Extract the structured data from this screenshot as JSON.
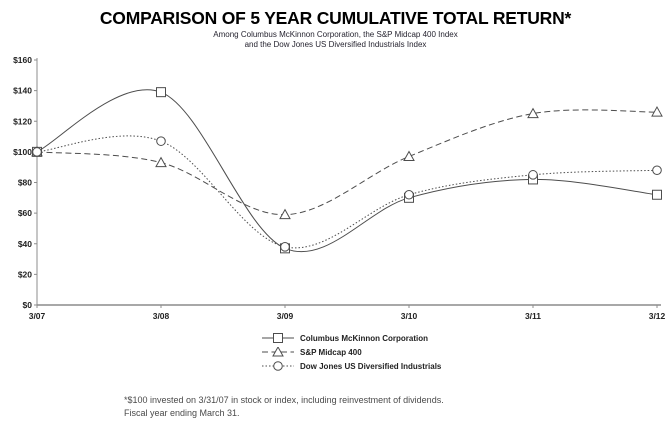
{
  "title": "COMPARISON OF 5 YEAR CUMULATIVE TOTAL RETURN*",
  "subtitle_line1": "Among Columbus McKinnon Corporation, the S&P Midcap 400 Index",
  "subtitle_line2": "and the Dow Jones US Diversified Industrials Index",
  "footnote_line1": "*$100 invested on 3/31/07 in stock or index, including reinvestment of dividends.",
  "footnote_line2": "Fiscal year ending March 31.",
  "chart_data": {
    "type": "line",
    "title": "COMPARISON OF 5 YEAR CUMULATIVE TOTAL RETURN*",
    "xlabel": "",
    "ylabel": "",
    "categories": [
      "3/07",
      "3/08",
      "3/09",
      "3/10",
      "3/11",
      "3/12"
    ],
    "series": [
      {
        "name": "Columbus McKinnon Corporation",
        "marker": "square",
        "line_style": "solid",
        "values": [
          100,
          139,
          37,
          70,
          82,
          72
        ]
      },
      {
        "name": "S&P Midcap 400",
        "marker": "triangle",
        "line_style": "dashed",
        "values": [
          100,
          93,
          59,
          97,
          125,
          126
        ]
      },
      {
        "name": "Dow Jones US Diversified Industrials",
        "marker": "circle",
        "line_style": "dotted",
        "values": [
          100,
          107,
          38,
          72,
          85,
          88
        ]
      }
    ],
    "ylim": [
      0,
      160
    ],
    "ytick_step": 20,
    "ytick_labels": [
      "$0",
      "$20",
      "$40",
      "$60",
      "$80",
      "$100",
      "$120",
      "$140",
      "$160"
    ],
    "grid": false,
    "legend_position": "bottom-center",
    "line_color": "#4d4d4d",
    "axis_color": "#8c8c8c",
    "text_color": "#222222",
    "marker_fill": "#ffffff"
  }
}
